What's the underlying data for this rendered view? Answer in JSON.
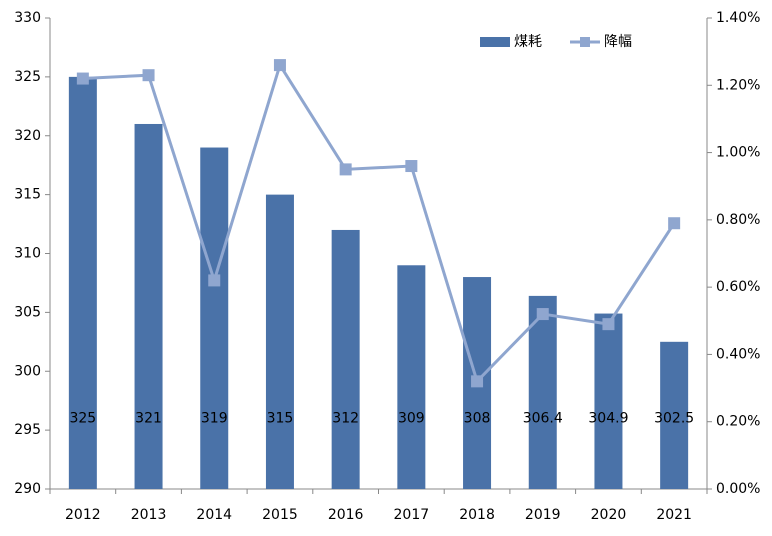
{
  "chart_data": {
    "type": "bar",
    "categories": [
      "2012",
      "2013",
      "2014",
      "2015",
      "2016",
      "2017",
      "2018",
      "2019",
      "2020",
      "2021"
    ],
    "series": [
      {
        "name": "煤耗",
        "type": "bar",
        "color": "#4a72a8",
        "values": [
          325,
          321,
          319,
          315,
          312,
          309,
          308,
          306.4,
          304.9,
          302.5
        ]
      },
      {
        "name": "降幅",
        "type": "line",
        "axis": "y2",
        "color": "#8fa6cf",
        "values": [
          1.22,
          1.23,
          0.62,
          1.26,
          0.95,
          0.96,
          0.32,
          0.52,
          0.49,
          0.79
        ]
      }
    ],
    "ylim": [
      290,
      330
    ],
    "yticks": [
      290,
      295,
      300,
      305,
      310,
      315,
      320,
      325,
      330
    ],
    "y2lim": [
      0,
      1.4
    ],
    "y2ticks": [
      {
        "value": 0,
        "label": "0.00%"
      },
      {
        "value": 0.2,
        "label": "0.20%"
      },
      {
        "value": 0.4,
        "label": "0.40%"
      },
      {
        "value": 0.6,
        "label": "0.60%"
      },
      {
        "value": 0.8,
        "label": "0.80%"
      },
      {
        "value": 1.0,
        "label": "1.00%"
      },
      {
        "value": 1.2,
        "label": "1.20%"
      },
      {
        "value": 1.4,
        "label": "1.40%"
      }
    ],
    "grid": false,
    "legend": "top-right"
  }
}
